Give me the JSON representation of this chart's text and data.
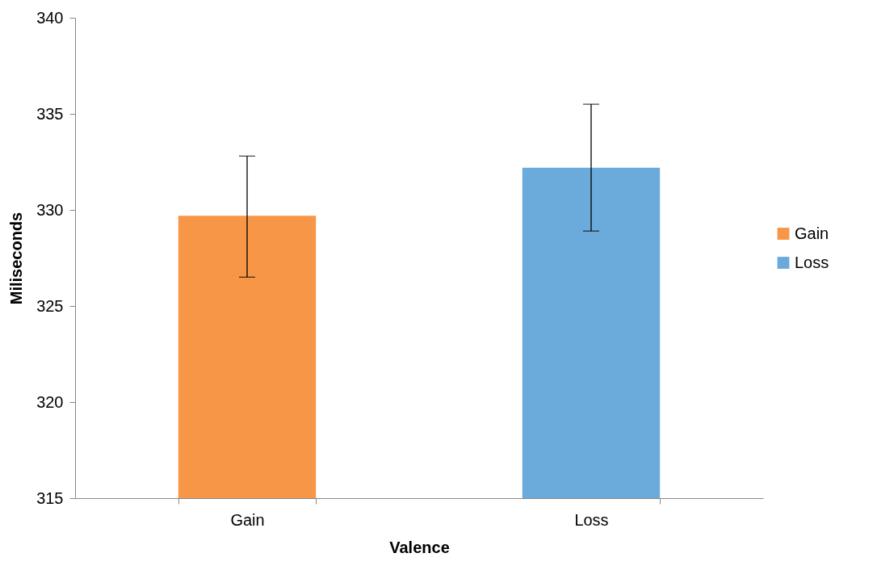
{
  "chart_data": {
    "type": "bar",
    "xlabel": "Valence",
    "ylabel": "Miliseconds",
    "categories": [
      "Gain",
      "Loss"
    ],
    "series": [
      {
        "name": "Gain",
        "color": "#f79646",
        "values": [
          329.7,
          null
        ],
        "errors": [
          [
            326.5,
            332.8
          ],
          null
        ]
      },
      {
        "name": "Loss",
        "color": "#6aabdc",
        "values": [
          null,
          332.2
        ],
        "errors": [
          null,
          [
            328.9,
            335.5
          ]
        ]
      }
    ],
    "ylim": [
      315,
      340
    ],
    "yticks": [
      315,
      320,
      325,
      330,
      335,
      340
    ],
    "grid": false,
    "legend": "right"
  }
}
